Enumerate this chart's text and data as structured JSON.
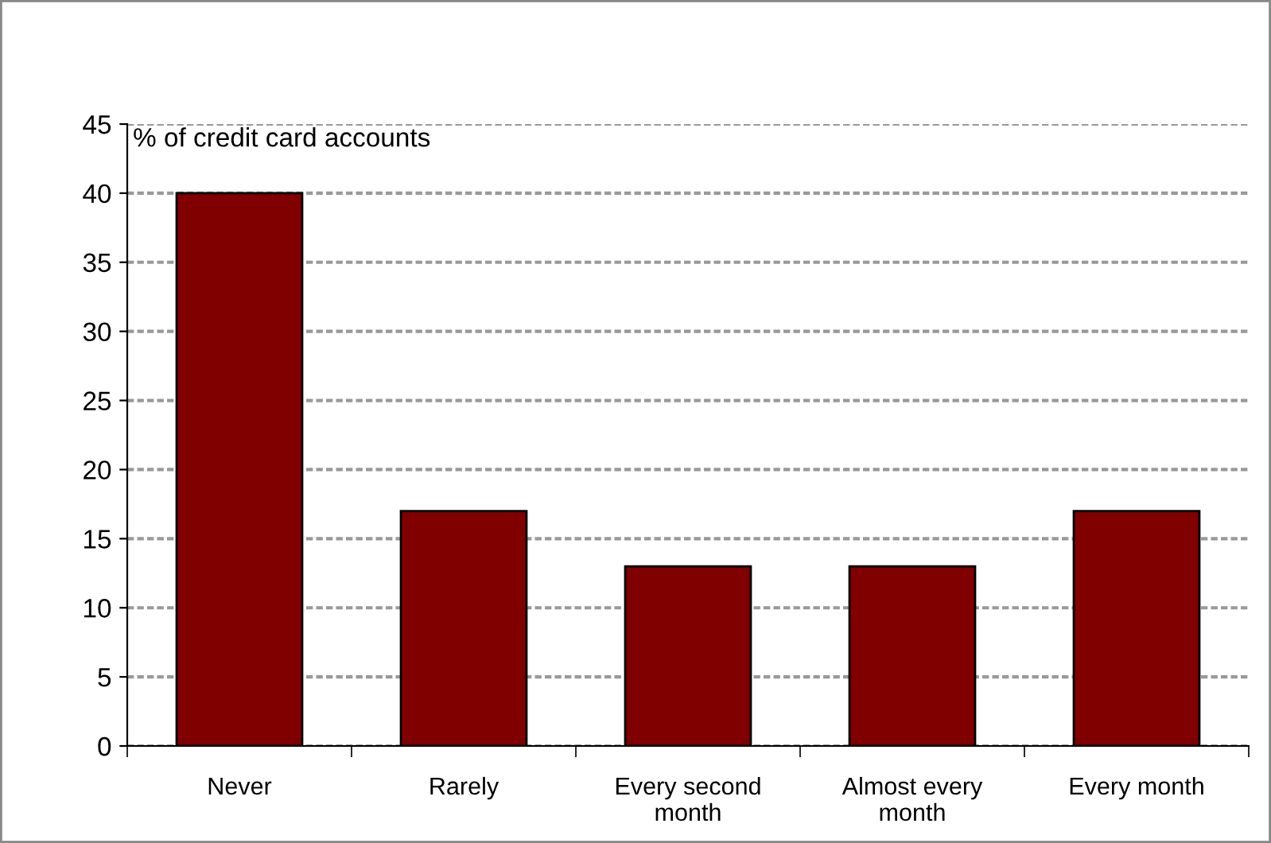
{
  "chart_data": {
    "type": "bar",
    "ylabel": "% of credit card accounts",
    "categories": [
      "Never",
      "Rarely",
      "Every second\nmonth",
      "Almost every\nmonth",
      "Every month"
    ],
    "values": [
      40,
      17,
      13,
      13,
      17
    ],
    "color": "#800000",
    "ylim": [
      0,
      45
    ],
    "yticks": [
      0,
      5,
      10,
      15,
      20,
      25,
      30,
      35,
      40,
      45
    ],
    "grid": "y",
    "legend": false
  }
}
